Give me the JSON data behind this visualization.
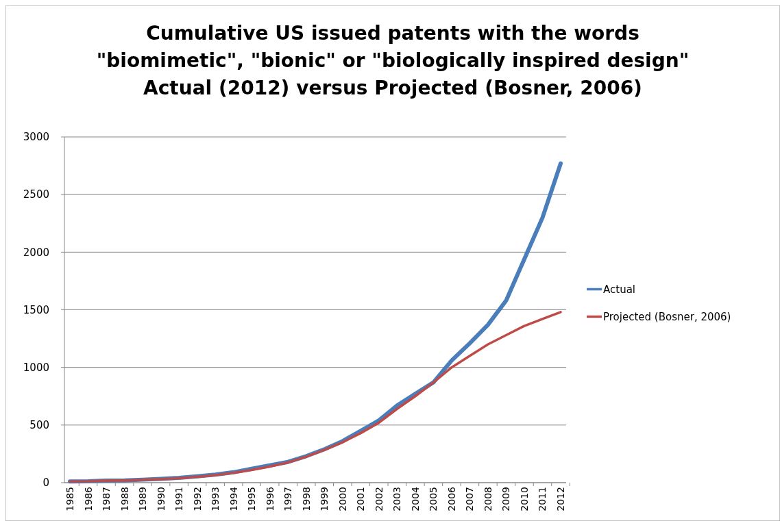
{
  "chart_data": {
    "type": "line",
    "title": "Cumulative US issued patents with the words\n\"biomimetic\", \"bionic\" or \"biologically inspired design\"\nActual (2012) versus Projected (Bosner, 2006)",
    "categories": [
      "1985",
      "1986",
      "1987",
      "1988",
      "1989",
      "1990",
      "1991",
      "1992",
      "1993",
      "1994",
      "1995",
      "1996",
      "1997",
      "1998",
      "1999",
      "2000",
      "2001",
      "2002",
      "2003",
      "2004",
      "2005",
      "2006",
      "2007",
      "2008",
      "2009",
      "2010",
      "2011",
      "2012"
    ],
    "series": [
      {
        "name": "Actual",
        "color": "#4a7ebb",
        "values": [
          10,
          12,
          18,
          20,
          26,
          33,
          42,
          55,
          70,
          90,
          120,
          150,
          180,
          230,
          290,
          360,
          450,
          540,
          670,
          770,
          870,
          1060,
          1210,
          1370,
          1580,
          1940,
          2300,
          2770
        ]
      },
      {
        "name": "Projected (Bosner, 2006)",
        "color": "#be4b48",
        "values": [
          10,
          12,
          18,
          20,
          25,
          30,
          38,
          50,
          65,
          85,
          110,
          140,
          175,
          225,
          285,
          350,
          430,
          520,
          640,
          750,
          870,
          1000,
          1100,
          1200,
          1280,
          1360,
          1420,
          1480
        ]
      }
    ],
    "ylim": [
      0,
      3000
    ],
    "yticks": [
      0,
      500,
      1000,
      1500,
      2000,
      2500,
      3000
    ],
    "grid": "y",
    "legend": "right",
    "marker": "none",
    "line_style": "solid"
  }
}
